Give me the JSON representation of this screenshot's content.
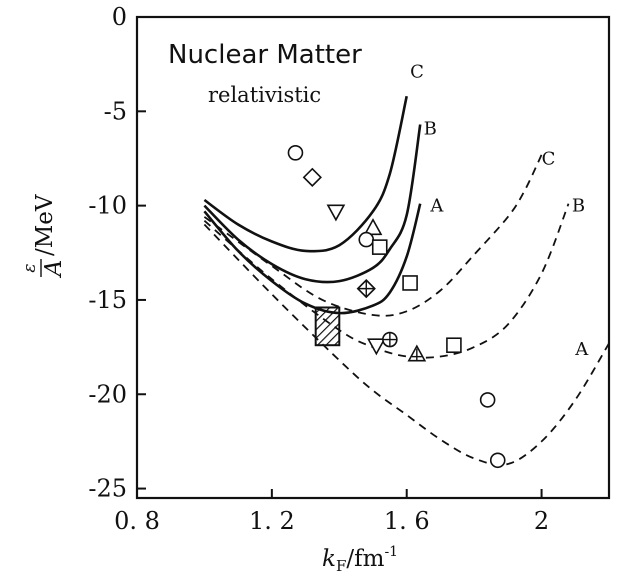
{
  "chart_data": {
    "type": "line",
    "annotations": {
      "title": "Nuclear Matter",
      "subtitle": "relativistic"
    },
    "xlabel": {
      "symbol": "k",
      "subscript": "F",
      "unit": "/fm",
      "exponent": "-1"
    },
    "ylabel": {
      "numerator": "ε",
      "denominator": "A",
      "unit": "/MeV"
    },
    "xlim": [
      0.8,
      2.2
    ],
    "ylim": [
      -25.5,
      0
    ],
    "x_ticks": [
      {
        "value": 0.8,
        "label": "0. 8"
      },
      {
        "value": 1.2,
        "label": "1. 2"
      },
      {
        "value": 1.6,
        "label": "1. 6"
      },
      {
        "value": 2.0,
        "label": "2"
      }
    ],
    "y_ticks": [
      {
        "value": 0,
        "label": "0"
      },
      {
        "value": -5,
        "label": "-5"
      },
      {
        "value": -10,
        "label": "-10"
      },
      {
        "value": -15,
        "label": "-15"
      },
      {
        "value": -20,
        "label": "-20"
      },
      {
        "value": -25,
        "label": "-25"
      }
    ],
    "series": [
      {
        "name": "C",
        "style": "solid",
        "label_at": [
          1.61,
          -2.9
        ],
        "points": [
          [
            1.0,
            -9.7
          ],
          [
            1.1,
            -11.0
          ],
          [
            1.2,
            -11.9
          ],
          [
            1.3,
            -12.4
          ],
          [
            1.4,
            -12.1
          ],
          [
            1.5,
            -10.3
          ],
          [
            1.55,
            -8.3
          ],
          [
            1.6,
            -4.2
          ]
        ]
      },
      {
        "name": "B",
        "style": "solid",
        "label_at": [
          1.65,
          -5.9
        ],
        "points": [
          [
            1.0,
            -10.0
          ],
          [
            1.1,
            -11.8
          ],
          [
            1.2,
            -13.1
          ],
          [
            1.3,
            -13.9
          ],
          [
            1.4,
            -14.0
          ],
          [
            1.5,
            -13.3
          ],
          [
            1.55,
            -12.3
          ],
          [
            1.6,
            -10.5
          ],
          [
            1.64,
            -5.7
          ]
        ]
      },
      {
        "name": "A",
        "style": "solid",
        "label_at": [
          1.67,
          -10.0
        ],
        "points": [
          [
            1.0,
            -10.3
          ],
          [
            1.1,
            -12.4
          ],
          [
            1.2,
            -14.0
          ],
          [
            1.3,
            -15.2
          ],
          [
            1.4,
            -15.7
          ],
          [
            1.5,
            -15.3
          ],
          [
            1.55,
            -14.6
          ],
          [
            1.6,
            -12.7
          ],
          [
            1.64,
            -9.9
          ]
        ]
      },
      {
        "name": "C",
        "style": "dashed",
        "label_at": [
          2.0,
          -7.5
        ],
        "points": [
          [
            1.0,
            -10.6
          ],
          [
            1.2,
            -13.2
          ],
          [
            1.35,
            -15.0
          ],
          [
            1.5,
            -15.8
          ],
          [
            1.6,
            -15.6
          ],
          [
            1.7,
            -14.5
          ],
          [
            1.8,
            -12.6
          ],
          [
            1.9,
            -10.6
          ],
          [
            1.95,
            -9.2
          ],
          [
            2.0,
            -7.3
          ]
        ]
      },
      {
        "name": "B",
        "style": "dashed",
        "label_at": [
          2.09,
          -10.0
        ],
        "points": [
          [
            1.0,
            -10.8
          ],
          [
            1.2,
            -13.9
          ],
          [
            1.4,
            -16.6
          ],
          [
            1.5,
            -17.5
          ],
          [
            1.6,
            -18.0
          ],
          [
            1.7,
            -18.0
          ],
          [
            1.8,
            -17.5
          ],
          [
            1.9,
            -16.3
          ],
          [
            2.0,
            -13.6
          ],
          [
            2.08,
            -9.9
          ]
        ]
      },
      {
        "name": "A",
        "style": "dashed",
        "label_at": [
          2.1,
          -17.6
        ],
        "points": [
          [
            1.0,
            -11.0
          ],
          [
            1.2,
            -14.7
          ],
          [
            1.4,
            -18.2
          ],
          [
            1.5,
            -19.8
          ],
          [
            1.6,
            -21.1
          ],
          [
            1.7,
            -22.4
          ],
          [
            1.8,
            -23.4
          ],
          [
            1.9,
            -23.7
          ],
          [
            2.0,
            -22.5
          ],
          [
            2.1,
            -20.3
          ],
          [
            2.2,
            -17.3
          ]
        ]
      }
    ],
    "markers": [
      {
        "shape": "circle",
        "x": 1.27,
        "y": -7.2
      },
      {
        "shape": "diamond",
        "x": 1.32,
        "y": -8.5
      },
      {
        "shape": "triangle-down",
        "x": 1.39,
        "y": -10.3
      },
      {
        "shape": "triangle-up",
        "x": 1.5,
        "y": -11.2
      },
      {
        "shape": "circle",
        "x": 1.48,
        "y": -11.8
      },
      {
        "shape": "square",
        "x": 1.52,
        "y": -12.2
      },
      {
        "shape": "diamond-plus",
        "x": 1.48,
        "y": -14.4
      },
      {
        "shape": "square",
        "x": 1.61,
        "y": -14.1
      },
      {
        "shape": "triangle-down",
        "x": 1.51,
        "y": -17.4
      },
      {
        "shape": "circle-plus",
        "x": 1.55,
        "y": -17.1
      },
      {
        "shape": "triangle-plus",
        "x": 1.63,
        "y": -17.9
      },
      {
        "shape": "square",
        "x": 1.74,
        "y": -17.4
      },
      {
        "shape": "circle",
        "x": 1.84,
        "y": -20.3
      },
      {
        "shape": "circle",
        "x": 1.87,
        "y": -23.5
      }
    ],
    "empirical_region": {
      "x": [
        1.33,
        1.4
      ],
      "y": [
        -15.4,
        -17.4
      ]
    }
  }
}
